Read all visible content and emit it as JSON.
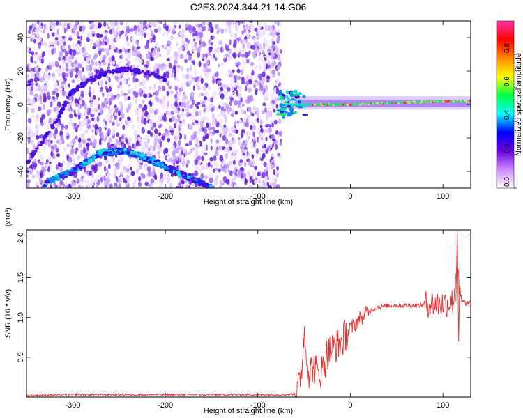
{
  "title": "C2E3.2024.344.21.14.G06",
  "chart_data": [
    {
      "type": "heatmap",
      "xlabel": "Height of straight line (km)",
      "ylabel": "Frequency (Hz)",
      "xlim": [
        -350,
        130
      ],
      "ylim": [
        -50,
        50
      ],
      "x_ticks": [
        -300,
        -200,
        -100,
        0,
        100
      ],
      "x_tick_labels": [
        "-300",
        "-200",
        "-100",
        "0",
        "100"
      ],
      "y_ticks": [
        -40,
        -20,
        0,
        20,
        40
      ],
      "y_tick_labels": [
        "-40",
        "-20",
        "0",
        "20",
        "40"
      ],
      "noise_region_x": [
        -350,
        -75
      ],
      "features": [
        {
          "name": "lower arc",
          "x": [
            -330,
            -300,
            -270,
            -250,
            -230,
            -200,
            -170,
            -150
          ],
          "y": [
            -47,
            -40,
            -29,
            -28,
            -30,
            -37,
            -45,
            -50
          ]
        },
        {
          "name": "upper arc",
          "x": [
            -350,
            -320,
            -300,
            -280,
            -260,
            -240,
            -220,
            -200
          ],
          "y": [
            -35,
            -12,
            8,
            15,
            20,
            21,
            19,
            15
          ]
        },
        {
          "name": "carrier line",
          "x": [
            -75,
            -60,
            -40,
            0,
            50,
            100,
            130
          ],
          "y": [
            0,
            0,
            0,
            0,
            1,
            2,
            2
          ]
        }
      ],
      "colorbar": {
        "label": "Normalized spectral amplitude",
        "range": [
          0,
          1
        ],
        "ticks": [
          0.0,
          0.2,
          0.4,
          0.6,
          0.8
        ],
        "tick_labels": [
          "0.0",
          "0.2",
          "0.4",
          "0.6",
          "0.8"
        ],
        "colors": [
          "#ffffff",
          "#cc88ff",
          "#6a00e0",
          "#0000ff",
          "#00ffff",
          "#00ff44",
          "#ffff00",
          "#ff8800",
          "#ff0000",
          "#ff33aa"
        ]
      },
      "grid": false
    },
    {
      "type": "line",
      "xlabel": "Height of straight line (km)",
      "ylabel": "SNR (10 * v/v)",
      "y_multiplier_label": "(x10",
      "y_multiplier_exp": "4",
      "y_multiplier_close": ")",
      "xlim": [
        -350,
        130
      ],
      "ylim": [
        0,
        2.1
      ],
      "x_ticks": [
        -300,
        -200,
        -100,
        0,
        100
      ],
      "x_tick_labels": [
        "-300",
        "-200",
        "-100",
        "0",
        "100"
      ],
      "y_ticks": [
        0.5,
        1.0,
        1.5,
        2.0
      ],
      "y_tick_labels": [
        "0.5",
        "1.0",
        "1.5",
        "2.0"
      ],
      "series": [
        {
          "color": "#e8302f",
          "x": [
            -350,
            -300,
            -250,
            -200,
            -150,
            -100,
            -70,
            -60,
            -55,
            -52,
            -50,
            -48,
            -45,
            -40,
            -35,
            -30,
            -25,
            -20,
            -15,
            -10,
            -5,
            0,
            10,
            20,
            30,
            40,
            50,
            60,
            70,
            80,
            85,
            90,
            95,
            100,
            105,
            110,
            112,
            115,
            118,
            120,
            125,
            130
          ],
          "y": [
            0.02,
            0.03,
            0.03,
            0.03,
            0.03,
            0.03,
            0.03,
            0.04,
            0.15,
            0.45,
            0.85,
            0.6,
            0.3,
            0.4,
            0.3,
            0.35,
            0.55,
            0.6,
            0.65,
            0.68,
            0.78,
            0.85,
            0.98,
            1.08,
            1.13,
            1.15,
            1.15,
            1.15,
            1.15,
            1.16,
            1.18,
            1.18,
            1.17,
            1.17,
            1.18,
            1.2,
            1.25,
            1.7,
            1.25,
            1.2,
            1.18,
            1.17
          ]
        }
      ],
      "grid": false
    }
  ]
}
